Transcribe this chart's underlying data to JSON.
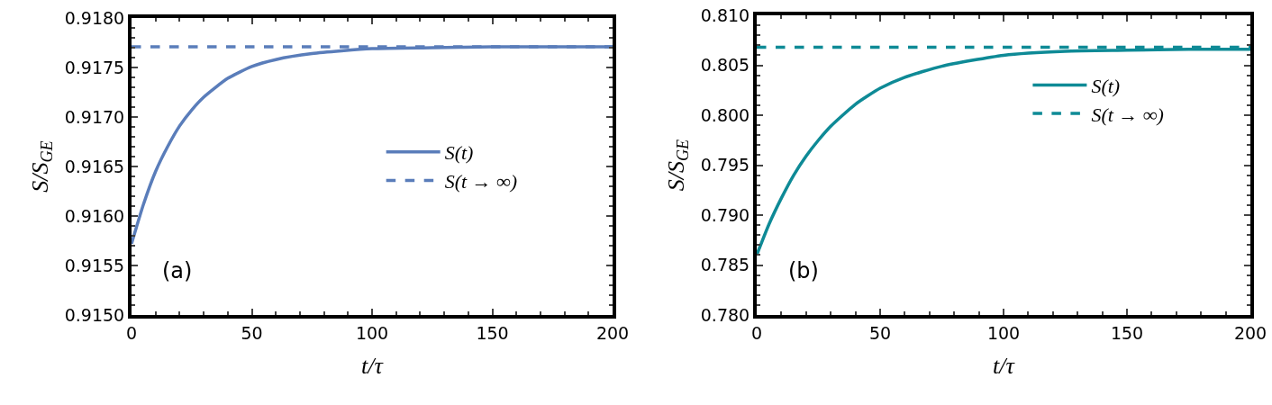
{
  "chart_data": [
    {
      "type": "line",
      "xlabel": "t/τ",
      "ylabel": "S/S$_{GE}$",
      "annotations": [
        "(a)"
      ],
      "legend": "right",
      "grid": false,
      "xlim": [
        0,
        200
      ],
      "xticks": [
        0,
        50,
        100,
        150,
        200
      ],
      "ylim": [
        0.915,
        0.918
      ],
      "yticks": [
        {
          "value": 0.915,
          "label": "0.9150"
        },
        {
          "value": 0.9155,
          "label": "0.9155"
        },
        {
          "value": 0.916,
          "label": "0.9160"
        },
        {
          "value": 0.9165,
          "label": "0.9165"
        },
        {
          "value": 0.917,
          "label": "0.9170"
        },
        {
          "value": 0.9175,
          "label": "0.9175"
        },
        {
          "value": 0.918,
          "label": "0.9180"
        }
      ],
      "x": [
        0,
        5,
        10,
        15,
        20,
        25,
        30,
        40,
        50,
        60,
        75,
        100,
        125,
        150,
        200
      ],
      "series": [
        {
          "name": "S(t)",
          "color": "#5a7dba",
          "line_style": "solid",
          "values": [
            0.91572,
            0.91612,
            0.91645,
            0.9167,
            0.91691,
            0.91707,
            0.9172,
            0.91739,
            0.91751,
            0.91758,
            0.91764,
            0.91769,
            0.9177,
            0.91771,
            0.91771
          ]
        }
      ],
      "ref_lines": [
        {
          "axis": "y",
          "value": 0.91771,
          "label": "S(t → ∞)",
          "color": "#5a7dba",
          "line_style": "dashed"
        }
      ]
    },
    {
      "type": "line",
      "xlabel": "t/τ",
      "ylabel": "S/S$_{GE}$",
      "annotations": [
        "(b)"
      ],
      "legend": "top right",
      "grid": false,
      "xlim": [
        0,
        200
      ],
      "xticks": [
        0,
        50,
        100,
        150,
        200
      ],
      "ylim": [
        0.78,
        0.81
      ],
      "yticks": [
        {
          "value": 0.78,
          "label": "0.780"
        },
        {
          "value": 0.785,
          "label": "0.785"
        },
        {
          "value": 0.79,
          "label": "0.790"
        },
        {
          "value": 0.795,
          "label": "0.795"
        },
        {
          "value": 0.8,
          "label": "0.800"
        },
        {
          "value": 0.805,
          "label": "0.805"
        },
        {
          "value": 0.81,
          "label": "0.810"
        }
      ],
      "x": [
        0,
        5,
        10,
        15,
        20,
        25,
        30,
        40,
        50,
        60,
        75,
        100,
        125,
        150,
        175,
        200
      ],
      "series": [
        {
          "name": "S(t)",
          "color": "#0e8a96",
          "line_style": "solid",
          "values": [
            0.786,
            0.7891,
            0.7917,
            0.794,
            0.7959,
            0.7975,
            0.7989,
            0.8011,
            0.8027,
            0.8038,
            0.8049,
            0.806,
            0.8064,
            0.8065,
            0.8066,
            0.8066
          ]
        }
      ],
      "ref_lines": [
        {
          "axis": "y",
          "value": 0.8068,
          "label": "S(t → ∞)",
          "color": "#0e8a96",
          "line_style": "dashed"
        }
      ]
    }
  ]
}
